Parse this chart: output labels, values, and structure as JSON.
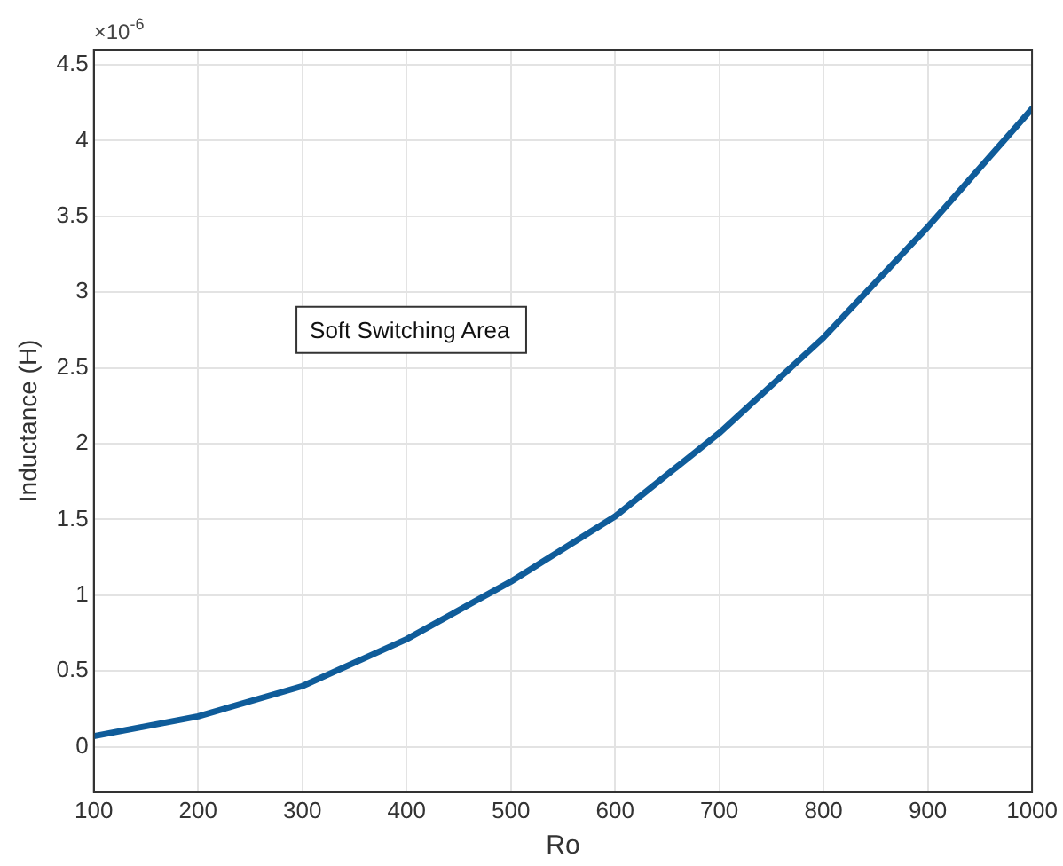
{
  "chart_data": {
    "type": "line",
    "xlabel": "Ro",
    "ylabel": "Inductance (H)",
    "annotations": [
      "×10$^{-6}$",
      "Soft Switching Area"
    ],
    "x": [
      100,
      200,
      300,
      400,
      500,
      600,
      700,
      800,
      900,
      1000
    ],
    "series": [
      {
        "color": "#0f5c9a",
        "values": [
          0.07,
          0.2,
          0.4,
          0.71,
          1.09,
          1.52,
          2.07,
          2.7,
          3.43,
          4.21
        ]
      }
    ],
    "xlim": [
      100,
      1000
    ],
    "xticks": [
      100,
      200,
      300,
      400,
      500,
      600,
      700,
      800,
      900,
      1000
    ],
    "ylim": [
      -0.3,
      4.6
    ],
    "yticks": [
      0,
      0.5,
      1,
      1.5,
      2,
      2.5,
      3,
      3.5,
      4,
      4.5
    ],
    "grid": true,
    "legend": false,
    "marker": "none",
    "line_style": "solid"
  }
}
